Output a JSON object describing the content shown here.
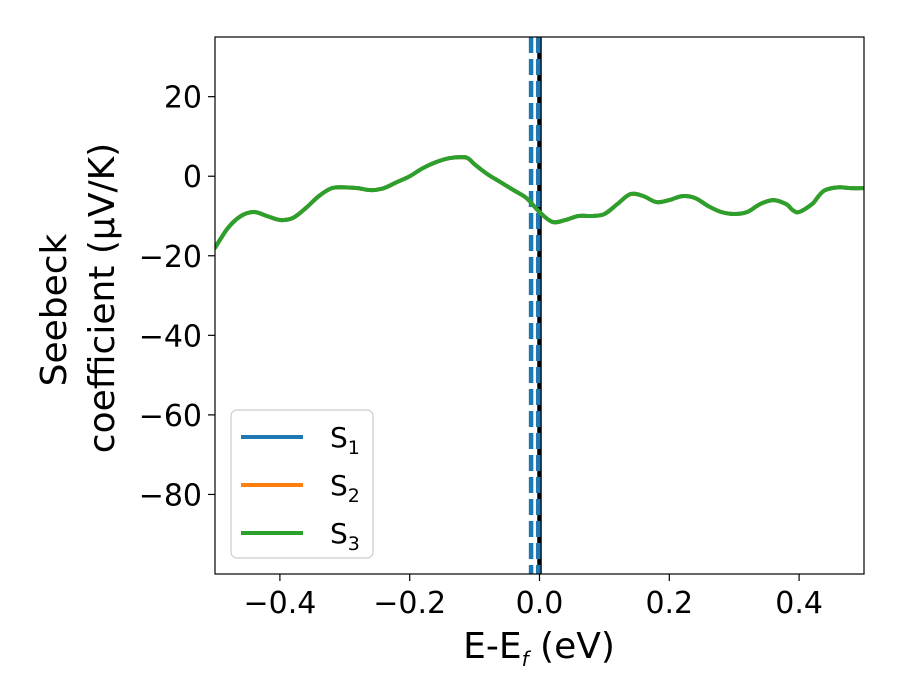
{
  "chart_data": {
    "type": "line",
    "title": "",
    "xlabel": "E-E",
    "xlabel_sub": "f",
    "xlabel_unit": " (eV)",
    "ylabel_line1": "Seebeck",
    "ylabel_line2": "coefficient  (μV/K)",
    "xlim": [
      -0.5,
      0.5
    ],
    "ylim": [
      -100,
      35
    ],
    "xticks": [
      -0.4,
      -0.2,
      0.0,
      0.2,
      0.4
    ],
    "xtick_labels": [
      "−0.4",
      "−0.2",
      "0.0",
      "0.2",
      "0.4"
    ],
    "yticks": [
      20,
      0,
      -20,
      -40,
      -60,
      -80
    ],
    "ytick_labels": [
      "20",
      "0",
      "−20",
      "−40",
      "−60",
      "−80"
    ],
    "grid": false,
    "legend_position": "lower-left",
    "series": [
      {
        "name": "S",
        "sub": "1",
        "color": "#1f77b4",
        "x": [
          -0.5,
          -0.48,
          -0.46,
          -0.44,
          -0.42,
          -0.4,
          -0.38,
          -0.36,
          -0.34,
          -0.32,
          -0.3,
          -0.28,
          -0.26,
          -0.24,
          -0.22,
          -0.2,
          -0.18,
          -0.16,
          -0.14,
          -0.12,
          -0.11,
          -0.1,
          -0.08,
          -0.06,
          -0.04,
          -0.02,
          0.0,
          0.02,
          0.04,
          0.06,
          0.08,
          0.1,
          0.12,
          0.14,
          0.16,
          0.18,
          0.2,
          0.22,
          0.24,
          0.26,
          0.28,
          0.3,
          0.32,
          0.34,
          0.36,
          0.38,
          0.39,
          0.4,
          0.42,
          0.43,
          0.44,
          0.46,
          0.48,
          0.5
        ],
        "y": [
          -18,
          -13,
          -10,
          -9,
          -10,
          -11,
          -10.5,
          -8,
          -5,
          -3,
          -2.8,
          -3,
          -3.5,
          -3,
          -1.5,
          0,
          2,
          3.5,
          4.5,
          4.8,
          4.5,
          3,
          0.5,
          -1.5,
          -3.5,
          -5.5,
          -9,
          -11.5,
          -11,
          -10,
          -10,
          -9.5,
          -7,
          -4.5,
          -5,
          -6.5,
          -6,
          -5,
          -5.5,
          -7.5,
          -9,
          -9.5,
          -9,
          -7,
          -6,
          -7,
          -8.5,
          -9,
          -7,
          -5,
          -3.5,
          -2.8,
          -3,
          -3
        ]
      },
      {
        "name": "S",
        "sub": "2",
        "color": "#ff7f0e",
        "x": [
          -0.5,
          -0.48,
          -0.46,
          -0.44,
          -0.42,
          -0.4,
          -0.38,
          -0.36,
          -0.34,
          -0.32,
          -0.3,
          -0.28,
          -0.26,
          -0.24,
          -0.22,
          -0.2,
          -0.18,
          -0.16,
          -0.14,
          -0.12,
          -0.11,
          -0.1,
          -0.08,
          -0.06,
          -0.04,
          -0.02,
          0.0,
          0.02,
          0.04,
          0.06,
          0.08,
          0.1,
          0.12,
          0.14,
          0.16,
          0.18,
          0.2,
          0.22,
          0.24,
          0.26,
          0.28,
          0.3,
          0.32,
          0.34,
          0.36,
          0.38,
          0.39,
          0.4,
          0.42,
          0.43,
          0.44,
          0.46,
          0.48,
          0.5
        ],
        "y": [
          -18,
          -13,
          -10,
          -9,
          -10,
          -11,
          -10.5,
          -8,
          -5,
          -3,
          -2.8,
          -3,
          -3.5,
          -3,
          -1.5,
          0,
          2,
          3.5,
          4.5,
          4.8,
          4.5,
          3,
          0.5,
          -1.5,
          -3.5,
          -5.5,
          -9,
          -11.5,
          -11,
          -10,
          -10,
          -9.5,
          -7,
          -4.5,
          -5,
          -6.5,
          -6,
          -5,
          -5.5,
          -7.5,
          -9,
          -9.5,
          -9,
          -7,
          -6,
          -7,
          -8.5,
          -9,
          -7,
          -5,
          -3.5,
          -2.8,
          -3,
          -3
        ]
      },
      {
        "name": "S",
        "sub": "3",
        "color": "#2ca02c",
        "x": [
          -0.5,
          -0.48,
          -0.46,
          -0.44,
          -0.42,
          -0.4,
          -0.38,
          -0.36,
          -0.34,
          -0.32,
          -0.3,
          -0.28,
          -0.26,
          -0.24,
          -0.22,
          -0.2,
          -0.18,
          -0.16,
          -0.14,
          -0.12,
          -0.11,
          -0.1,
          -0.08,
          -0.06,
          -0.04,
          -0.02,
          0.0,
          0.02,
          0.04,
          0.06,
          0.08,
          0.1,
          0.12,
          0.14,
          0.16,
          0.18,
          0.2,
          0.22,
          0.24,
          0.26,
          0.28,
          0.3,
          0.32,
          0.34,
          0.36,
          0.38,
          0.39,
          0.4,
          0.42,
          0.43,
          0.44,
          0.46,
          0.48,
          0.5
        ],
        "y": [
          -18,
          -13,
          -10,
          -9,
          -10,
          -11,
          -10.5,
          -8,
          -5,
          -3,
          -2.8,
          -3,
          -3.5,
          -3,
          -1.5,
          0,
          2,
          3.5,
          4.5,
          4.8,
          4.5,
          3,
          0.5,
          -1.5,
          -3.5,
          -5.5,
          -9,
          -11.5,
          -11,
          -10,
          -10,
          -9.5,
          -7,
          -4.5,
          -5,
          -6.5,
          -6,
          -5,
          -5.5,
          -7.5,
          -9,
          -9.5,
          -9,
          -7,
          -6,
          -7,
          -8.5,
          -9,
          -7,
          -5,
          -3.5,
          -2.8,
          -3,
          -3
        ]
      }
    ],
    "vlines": [
      {
        "x": 0.0,
        "color": "#000000",
        "style": "solid"
      },
      {
        "x": -0.013,
        "color": "#1f77b4",
        "style": "dashed"
      },
      {
        "x": -0.002,
        "color": "#1f77b4",
        "style": "dashed"
      }
    ]
  }
}
